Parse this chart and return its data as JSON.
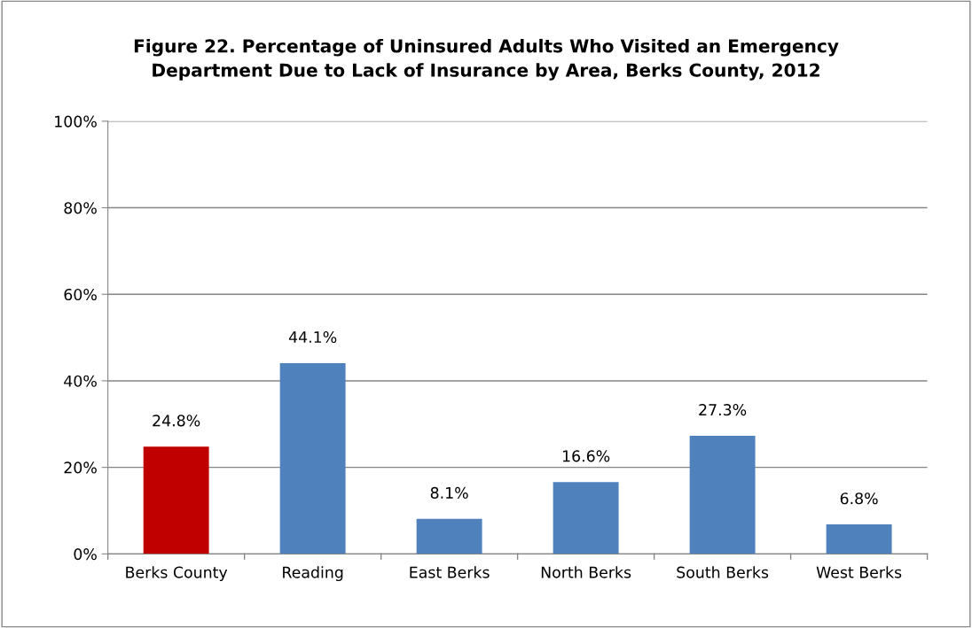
{
  "chart_data": {
    "type": "bar",
    "title": "Figure 22. Percentage of Uninsured Adults Who Visited an Emergency\nDepartment Due to Lack of Insurance by Area, Berks County, 2012",
    "categories": [
      "Berks County",
      "Reading",
      "East Berks",
      "North Berks",
      "South Berks",
      "West Berks"
    ],
    "values": [
      24.8,
      44.1,
      8.1,
      16.6,
      27.3,
      6.8
    ],
    "colors": [
      "#c00000",
      "#4f81bd",
      "#4f81bd",
      "#4f81bd",
      "#4f81bd",
      "#4f81bd"
    ],
    "value_labels": [
      "24.8%",
      "44.1%",
      "8.1%",
      "16.6%",
      "27.3%",
      "6.8%"
    ],
    "ylim": [
      0,
      100
    ],
    "yticks": [
      {
        "value": 0,
        "label": "0%"
      },
      {
        "value": 20,
        "label": "20%"
      },
      {
        "value": 40,
        "label": "40%"
      },
      {
        "value": 60,
        "label": "60%"
      },
      {
        "value": 80,
        "label": "80%"
      },
      {
        "value": 100,
        "label": "100%"
      }
    ],
    "grid": "y",
    "legend": false
  }
}
